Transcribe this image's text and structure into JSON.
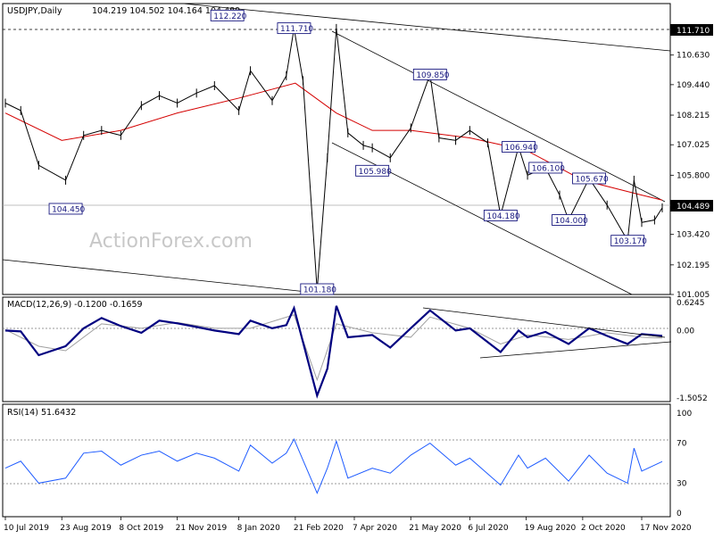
{
  "header": {
    "symbol_label": "USDJPY,Daily",
    "ohlc_text": "104.219 104.502 104.164 104.489"
  },
  "watermark": "ActionForex.com",
  "colors": {
    "price": "#000000",
    "ma": "#d40000",
    "macd": "#000080",
    "signal": "#a0a0a0",
    "rsi": "#1e5bff",
    "label_border": "#1a1a80",
    "label_text": "#1a1a80",
    "current_bg": "#000000"
  },
  "chart_data": [
    {
      "type": "line",
      "title": "USDJPY,Daily",
      "xlabel": "",
      "ylabel": "",
      "ylim": [
        101.005,
        112.7
      ],
      "ytick_labels": [
        "111.710",
        "110.630",
        "109.440",
        "108.215",
        "107.025",
        "105.800",
        "104.489",
        "103.420",
        "102.195",
        "101.005"
      ],
      "current_price": "104.489",
      "resistance_line_label": "111.710",
      "x_labels": [
        "10 Jul 2019",
        "23 Aug 2019",
        "8 Oct 2019",
        "21 Nov 2019",
        "8 Jan 2020",
        "21 Feb 2020",
        "7 Apr 2020",
        "21 May 2020",
        "6 Jul 2020",
        "19 Aug 2020",
        "2 Oct 2020",
        "17 Nov 2020"
      ],
      "x_label_dates": [
        "2019-07-10",
        "2019-08-23",
        "2019-10-08",
        "2019-11-21",
        "2020-01-08",
        "2020-02-21",
        "2020-04-07",
        "2020-05-21",
        "2020-07-06",
        "2020-08-19",
        "2020-10-02",
        "2020-11-17"
      ],
      "annotations": [
        {
          "text": "112.220",
          "date": "2019-12-30",
          "price": 112.22
        },
        {
          "text": "111.710",
          "date": "2020-02-20",
          "price": 111.71
        },
        {
          "text": "109.850",
          "date": "2020-06-05",
          "price": 109.85
        },
        {
          "text": "106.940",
          "date": "2020-08-13",
          "price": 106.94
        },
        {
          "text": "106.100",
          "date": "2020-09-03",
          "price": 106.1
        },
        {
          "text": "105.670",
          "date": "2020-10-07",
          "price": 105.67
        },
        {
          "text": "104.450",
          "date": "2019-08-26",
          "price": 104.45
        },
        {
          "text": "105.980",
          "date": "2020-04-21",
          "price": 105.98
        },
        {
          "text": "104.180",
          "date": "2020-07-30",
          "price": 104.18
        },
        {
          "text": "104.000",
          "date": "2020-09-21",
          "price": 104.0
        },
        {
          "text": "103.170",
          "date": "2020-11-06",
          "price": 103.17
        },
        {
          "text": "101.180",
          "date": "2020-03-09",
          "price": 101.18
        }
      ],
      "series": [
        {
          "name": "",
          "x": [
            "2019-07-10",
            "2019-07-22",
            "2019-08-05",
            "2019-08-26",
            "2019-09-09",
            "2019-09-23",
            "2019-10-08",
            "2019-10-24",
            "2019-11-07",
            "2019-11-21",
            "2019-12-06",
            "2019-12-20",
            "2020-01-08",
            "2020-01-17",
            "2020-02-03",
            "2020-02-14",
            "2020-02-20",
            "2020-02-27",
            "2020-03-09",
            "2020-03-17",
            "2020-03-24",
            "2020-04-02",
            "2020-04-14",
            "2020-04-21",
            "2020-05-05",
            "2020-05-21",
            "2020-06-05",
            "2020-06-12",
            "2020-06-25",
            "2020-07-06",
            "2020-07-20",
            "2020-07-30",
            "2020-08-13",
            "2020-08-20",
            "2020-09-03",
            "2020-09-14",
            "2020-09-21",
            "2020-10-07",
            "2020-10-21",
            "2020-11-06",
            "2020-11-11",
            "2020-11-17",
            "2020-11-27",
            "2020-12-03"
          ],
          "values": [
            108.7,
            108.4,
            106.2,
            105.6,
            107.4,
            107.6,
            107.4,
            108.6,
            109.0,
            108.7,
            109.1,
            109.4,
            108.4,
            110.0,
            108.8,
            109.8,
            111.7,
            109.6,
            101.18,
            106.5,
            111.7,
            107.5,
            107.0,
            106.9,
            106.5,
            107.7,
            109.85,
            107.3,
            107.2,
            107.6,
            107.1,
            104.18,
            106.94,
            105.8,
            106.1,
            105.0,
            104.0,
            105.67,
            104.6,
            103.17,
            105.6,
            103.9,
            104.0,
            104.49
          ]
        },
        {
          "name": "",
          "x": [
            "2019-07-10",
            "2019-08-23",
            "2019-10-08",
            "2019-11-21",
            "2020-01-08",
            "2020-02-21",
            "2020-03-24",
            "2020-04-21",
            "2020-05-21",
            "2020-07-06",
            "2020-08-19",
            "2020-10-02",
            "2020-11-17",
            "2020-12-03"
          ],
          "values": [
            108.3,
            107.2,
            107.6,
            108.3,
            108.9,
            109.5,
            108.3,
            107.6,
            107.6,
            107.3,
            106.8,
            105.6,
            105.0,
            104.8
          ]
        }
      ]
    },
    {
      "type": "line",
      "title": "MACD(12,26,9) -0.1200 -0.1659",
      "ylim": [
        -1.5052,
        0.6245
      ],
      "ytick_labels": [
        "0.6245",
        "0.00",
        "-1.5052"
      ],
      "series": [
        {
          "name": "",
          "x": [
            "2019-07-10",
            "2019-07-22",
            "2019-08-05",
            "2019-08-26",
            "2019-09-09",
            "2019-09-23",
            "2019-10-08",
            "2019-10-24",
            "2019-11-07",
            "2019-11-21",
            "2019-12-06",
            "2019-12-20",
            "2020-01-08",
            "2020-01-17",
            "2020-02-03",
            "2020-02-14",
            "2020-02-20",
            "2020-03-09",
            "2020-03-17",
            "2020-03-24",
            "2020-04-02",
            "2020-04-21",
            "2020-05-05",
            "2020-05-21",
            "2020-06-05",
            "2020-06-25",
            "2020-07-06",
            "2020-07-30",
            "2020-08-13",
            "2020-08-20",
            "2020-09-03",
            "2020-09-21",
            "2020-10-07",
            "2020-10-21",
            "2020-11-06",
            "2020-11-17",
            "2020-12-03"
          ],
          "values": [
            0.0,
            -0.02,
            -0.55,
            -0.35,
            0.05,
            0.28,
            0.1,
            -0.05,
            0.22,
            0.16,
            0.08,
            0.0,
            -0.08,
            0.22,
            0.05,
            0.12,
            0.5,
            -1.45,
            -0.85,
            0.55,
            -0.15,
            -0.1,
            -0.38,
            0.05,
            0.45,
            0.0,
            0.05,
            -0.48,
            0.0,
            -0.15,
            -0.03,
            -0.3,
            0.05,
            -0.12,
            -0.3,
            -0.08,
            -0.12
          ]
        },
        {
          "name": "",
          "x": [
            "2019-07-10",
            "2019-08-05",
            "2019-08-26",
            "2019-09-23",
            "2019-10-24",
            "2019-11-21",
            "2019-12-20",
            "2020-01-17",
            "2020-02-20",
            "2020-03-09",
            "2020-03-24",
            "2020-04-21",
            "2020-05-21",
            "2020-06-05",
            "2020-07-06",
            "2020-07-30",
            "2020-08-20",
            "2020-09-21",
            "2020-10-21",
            "2020-11-17",
            "2020-12-03"
          ],
          "values": [
            0.02,
            -0.35,
            -0.45,
            0.15,
            0.05,
            0.18,
            0.05,
            0.05,
            0.35,
            -1.1,
            0.15,
            -0.05,
            -0.15,
            0.3,
            0.05,
            -0.3,
            -0.1,
            -0.2,
            -0.05,
            -0.15,
            -0.17
          ]
        }
      ]
    },
    {
      "type": "line",
      "title": "RSI(14) 51.6432",
      "ylim": [
        0,
        100
      ],
      "ytick_labels": [
        "100",
        "70",
        "30",
        "0"
      ],
      "series": [
        {
          "name": "",
          "x": [
            "2019-07-10",
            "2019-07-22",
            "2019-08-05",
            "2019-08-26",
            "2019-09-09",
            "2019-09-23",
            "2019-10-08",
            "2019-10-24",
            "2019-11-07",
            "2019-11-21",
            "2019-12-06",
            "2019-12-20",
            "2020-01-08",
            "2020-01-17",
            "2020-02-03",
            "2020-02-14",
            "2020-02-20",
            "2020-03-09",
            "2020-03-17",
            "2020-03-24",
            "2020-04-02",
            "2020-04-21",
            "2020-05-05",
            "2020-05-21",
            "2020-06-05",
            "2020-06-25",
            "2020-07-06",
            "2020-07-30",
            "2020-08-13",
            "2020-08-20",
            "2020-09-03",
            "2020-09-21",
            "2020-10-07",
            "2020-10-21",
            "2020-11-06",
            "2020-11-11",
            "2020-11-17",
            "2020-12-03"
          ],
          "values": [
            45,
            52,
            30,
            35,
            60,
            62,
            48,
            58,
            62,
            52,
            60,
            55,
            42,
            68,
            50,
            60,
            74,
            20,
            45,
            72,
            35,
            45,
            40,
            58,
            70,
            48,
            55,
            28,
            58,
            45,
            55,
            32,
            58,
            40,
            30,
            65,
            42,
            51.64
          ]
        }
      ]
    }
  ]
}
